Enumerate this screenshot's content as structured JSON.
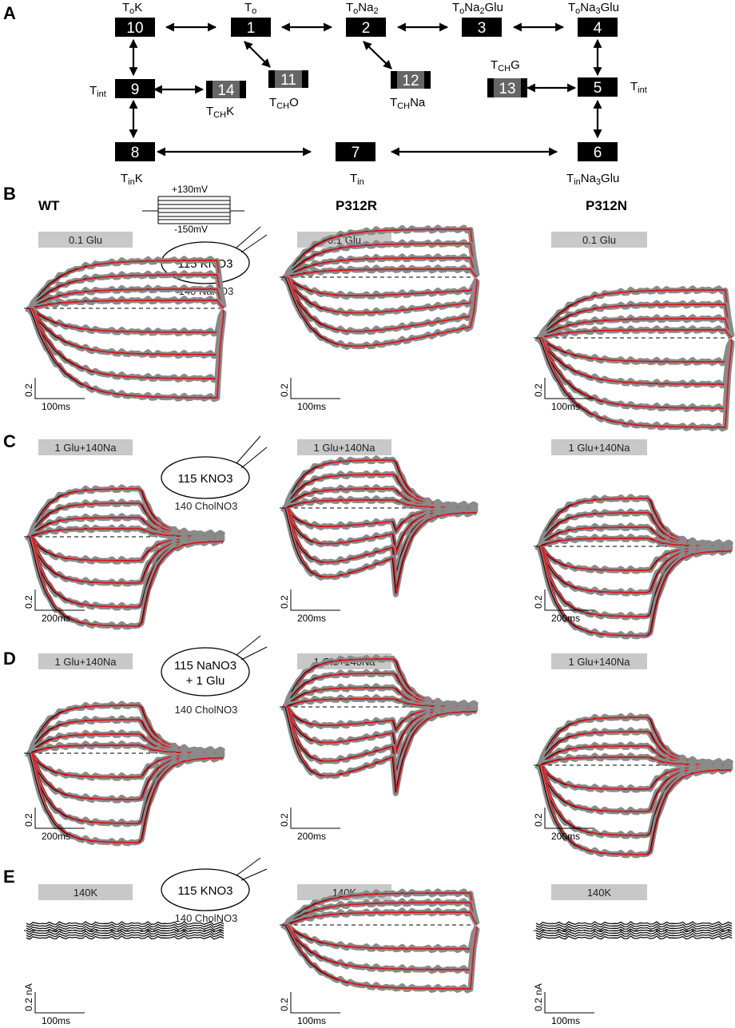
{
  "panels": {
    "A": "A",
    "B": "B",
    "C": "C",
    "D": "D",
    "E": "E"
  },
  "column_headers": {
    "wt": "WT",
    "p312r": "P312R",
    "p312n": "P312N"
  },
  "protocol": {
    "top": "+130mV",
    "bottom": "-150mV"
  },
  "states": [
    {
      "num": "10",
      "label": "ToK",
      "gray": false
    },
    {
      "num": "1",
      "label": "To",
      "gray": false
    },
    {
      "num": "2",
      "label": "ToNa2",
      "gray": false
    },
    {
      "num": "3",
      "label": "ToNa2Glu",
      "gray": false
    },
    {
      "num": "4",
      "label": "ToNa3Glu",
      "gray": false
    },
    {
      "num": "9",
      "label": "Tint",
      "gray": false
    },
    {
      "num": "14",
      "label": "TCHK",
      "gray": true
    },
    {
      "num": "11",
      "label": "TCHO",
      "gray": true
    },
    {
      "num": "12",
      "label": "TCHNa",
      "gray": true
    },
    {
      "num": "13",
      "label": "TCHG",
      "gray": true
    },
    {
      "num": "5",
      "label": "Tint",
      "gray": false
    },
    {
      "num": "8",
      "label": "TinK",
      "gray": false
    },
    {
      "num": "7",
      "label": "Tin",
      "gray": false
    },
    {
      "num": "6",
      "label": "TinNa3Glu",
      "gray": false
    }
  ],
  "rows": [
    {
      "letter": "B",
      "bar": "0.1 Glu",
      "solutions": [
        "115 KNO3",
        "140 NaNO3"
      ],
      "scale_x": "100ms",
      "scale_y": "0.2"
    },
    {
      "letter": "C",
      "bar": "1 Glu+140Na",
      "solutions": [
        "115 KNO3",
        "140 CholNO3"
      ],
      "scale_x": "200ms",
      "scale_y": "0.2"
    },
    {
      "letter": "D",
      "bar": "1 Glu+140Na",
      "solutions": [
        "115 NaNO3",
        "+ 1 Glu",
        "140 CholNO3"
      ],
      "scale_x": "200ms",
      "scale_y": "0.2"
    },
    {
      "letter": "E",
      "bar": "140K",
      "solutions": [
        "115 KNO3",
        "140 CholNO3"
      ],
      "scale_x": "100ms",
      "scale_y": "0.2 nA",
      "scale_y_mid": "0.2"
    }
  ],
  "colors": {
    "trace": "#111111",
    "fit": "#e8141b",
    "band": "#8a8a8a",
    "bar": "#c8c8c8",
    "state": "#000000",
    "state_gray": "#666666"
  }
}
